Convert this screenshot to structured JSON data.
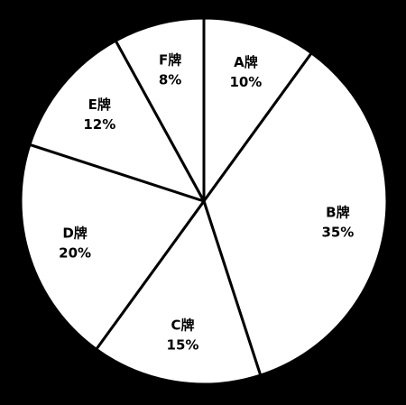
{
  "chart_data": {
    "type": "pie",
    "categories": [
      "A牌",
      "B牌",
      "C牌",
      "D牌",
      "E牌",
      "F牌"
    ],
    "values": [
      10,
      35,
      15,
      20,
      12,
      8
    ],
    "value_labels": [
      "10%",
      "35%",
      "15%",
      "20%",
      "12%",
      "8%"
    ],
    "start_angle": "12 o'clock",
    "direction": "clockwise",
    "legend": "none",
    "colors": {
      "background": "#000000",
      "slice_fill": "#ffffff",
      "outline": "#000000",
      "text": "#000000"
    }
  }
}
